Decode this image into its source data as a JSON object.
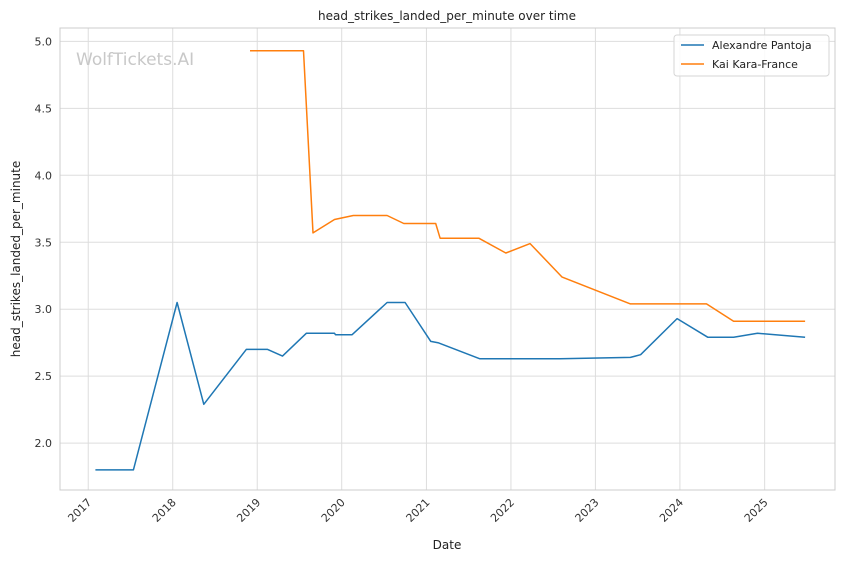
{
  "chart_data": {
    "type": "line",
    "title": "head_strikes_landed_per_minute over time",
    "xlabel": "Date",
    "ylabel": "head_strikes_landed_per_minute",
    "watermark": "WolfTickets.AI",
    "xlim": [
      "2016-09-01",
      "2025-11-01"
    ],
    "ylim": [
      1.65,
      5.1
    ],
    "y_ticks": [
      2.0,
      2.5,
      3.0,
      3.5,
      4.0,
      4.5,
      5.0
    ],
    "y_tick_labels": [
      "2.0",
      "2.5",
      "3.0",
      "3.5",
      "4.0",
      "4.5",
      "5.0"
    ],
    "x_ticks": [
      "2017-01-01",
      "2018-01-01",
      "2019-01-01",
      "2020-01-01",
      "2021-01-01",
      "2022-01-01",
      "2023-01-01",
      "2024-01-01",
      "2025-01-01"
    ],
    "x_tick_labels": [
      "2017",
      "2018",
      "2019",
      "2020",
      "2021",
      "2022",
      "2023",
      "2024",
      "2025"
    ],
    "grid": true,
    "legend_position": "top-right",
    "series": [
      {
        "name": "Alexandre Pantoja",
        "color": "#1f77b4",
        "points": [
          [
            "2017-02-01",
            1.8
          ],
          [
            "2017-07-15",
            1.8
          ],
          [
            "2018-01-20",
            3.05
          ],
          [
            "2018-05-15",
            2.29
          ],
          [
            "2018-11-15",
            2.7
          ],
          [
            "2019-02-15",
            2.7
          ],
          [
            "2019-04-20",
            2.65
          ],
          [
            "2019-08-01",
            2.82
          ],
          [
            "2019-12-01",
            2.82
          ],
          [
            "2019-12-05",
            2.81
          ],
          [
            "2020-02-15",
            2.81
          ],
          [
            "2020-07-15",
            3.05
          ],
          [
            "2020-10-01",
            3.05
          ],
          [
            "2021-01-20",
            2.76
          ],
          [
            "2021-02-20",
            2.75
          ],
          [
            "2021-08-20",
            2.63
          ],
          [
            "2022-03-01",
            2.63
          ],
          [
            "2022-08-01",
            2.63
          ],
          [
            "2023-06-01",
            2.64
          ],
          [
            "2023-07-15",
            2.66
          ],
          [
            "2023-12-20",
            2.93
          ],
          [
            "2024-05-01",
            2.79
          ],
          [
            "2024-08-20",
            2.79
          ],
          [
            "2024-12-01",
            2.82
          ],
          [
            "2025-06-25",
            2.79
          ]
        ]
      },
      {
        "name": "Kai Kara-France",
        "color": "#ff7f0e",
        "points": [
          [
            "2018-12-01",
            4.93
          ],
          [
            "2019-07-20",
            4.93
          ],
          [
            "2019-08-30",
            3.57
          ],
          [
            "2019-12-01",
            3.67
          ],
          [
            "2020-02-20",
            3.7
          ],
          [
            "2020-07-15",
            3.7
          ],
          [
            "2020-09-25",
            3.64
          ],
          [
            "2021-02-10",
            3.64
          ],
          [
            "2021-03-01",
            3.53
          ],
          [
            "2021-08-15",
            3.53
          ],
          [
            "2021-12-10",
            3.42
          ],
          [
            "2022-03-25",
            3.49
          ],
          [
            "2022-08-10",
            3.24
          ],
          [
            "2023-06-01",
            3.04
          ],
          [
            "2024-04-25",
            3.04
          ],
          [
            "2024-08-20",
            2.91
          ],
          [
            "2025-06-25",
            2.91
          ]
        ]
      }
    ]
  }
}
